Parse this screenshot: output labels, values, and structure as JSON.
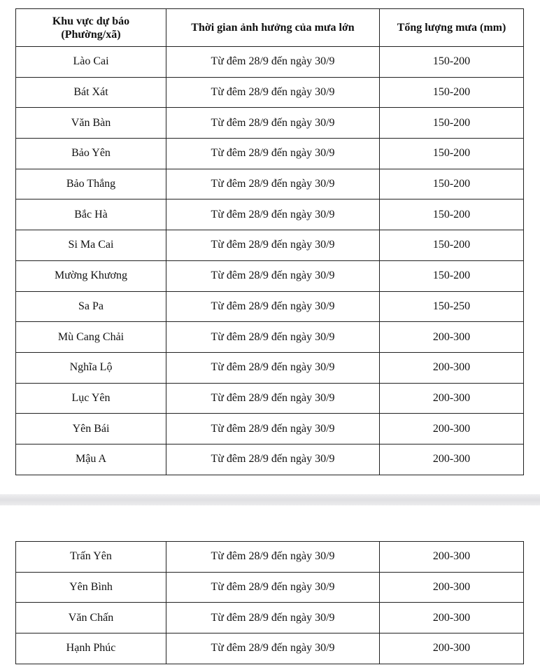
{
  "header": {
    "area": "Khu vực dự báo",
    "area_sub": "(Phường/xã)",
    "time": "Thời gian ảnh hưởng của mưa lớn",
    "total": "Tổng lượng mưa (mm)"
  },
  "table1": [
    {
      "area": "Lào Cai",
      "time": "Từ đêm 28/9 đến ngày 30/9",
      "total": "150-200"
    },
    {
      "area": "Bát Xát",
      "time": "Từ đêm 28/9 đến ngày 30/9",
      "total": "150-200"
    },
    {
      "area": "Văn Bàn",
      "time": "Từ đêm 28/9 đến ngày 30/9",
      "total": "150-200"
    },
    {
      "area": "Bảo Yên",
      "time": "Từ đêm 28/9 đến ngày 30/9",
      "total": "150-200"
    },
    {
      "area": "Bảo Thắng",
      "time": "Từ đêm 28/9 đến ngày 30/9",
      "total": "150-200"
    },
    {
      "area": "Bắc Hà",
      "time": "Từ đêm 28/9 đến ngày 30/9",
      "total": "150-200"
    },
    {
      "area": "Si Ma Cai",
      "time": "Từ đêm 28/9 đến ngày 30/9",
      "total": "150-200"
    },
    {
      "area": "Mường Khương",
      "time": "Từ đêm 28/9 đến ngày 30/9",
      "total": "150-200"
    },
    {
      "area": "Sa Pa",
      "time": "Từ đêm 28/9 đến ngày 30/9",
      "total": "150-250"
    },
    {
      "area": "Mù Cang Chải",
      "time": "Từ đêm 28/9 đến ngày 30/9",
      "total": "200-300"
    },
    {
      "area": "Nghĩa Lộ",
      "time": "Từ đêm 28/9 đến ngày 30/9",
      "total": "200-300"
    },
    {
      "area": "Lục Yên",
      "time": "Từ đêm 28/9 đến ngày 30/9",
      "total": "200-300"
    },
    {
      "area": "Yên Bái",
      "time": "Từ đêm 28/9 đến ngày 30/9",
      "total": "200-300"
    },
    {
      "area": "Mậu A",
      "time": "Từ đêm 28/9 đến ngày 30/9",
      "total": "200-300"
    }
  ],
  "table2": [
    {
      "area": "Trấn Yên",
      "time": "Từ đêm 28/9 đến ngày 30/9",
      "total": "200-300"
    },
    {
      "area": "Yên Bình",
      "time": "Từ đêm 28/9 đến ngày 30/9",
      "total": "200-300"
    },
    {
      "area": "Văn Chấn",
      "time": "Từ đêm 28/9 đến ngày 30/9",
      "total": "200-300"
    },
    {
      "area": "Hạnh Phúc",
      "time": "Từ đêm 28/9 đến ngày 30/9",
      "total": "200-300"
    }
  ]
}
